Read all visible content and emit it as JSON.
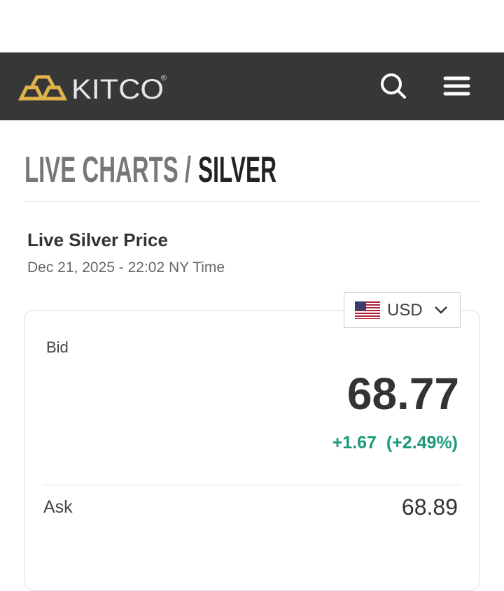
{
  "header": {
    "logo": "KITCO",
    "registered": "®"
  },
  "title": {
    "section": "LIVE CHARTS /",
    "metal": "SILVER"
  },
  "price_panel": {
    "heading": "Live Silver Price",
    "timestamp": "Dec 21, 2025 - 22:02 NY Time",
    "currency": "USD",
    "bid_label": "Bid",
    "bid": "68.77",
    "change": "+1.67",
    "change_percent": "(+2.49%)",
    "ask_label": "Ask",
    "ask": "68.89"
  }
}
